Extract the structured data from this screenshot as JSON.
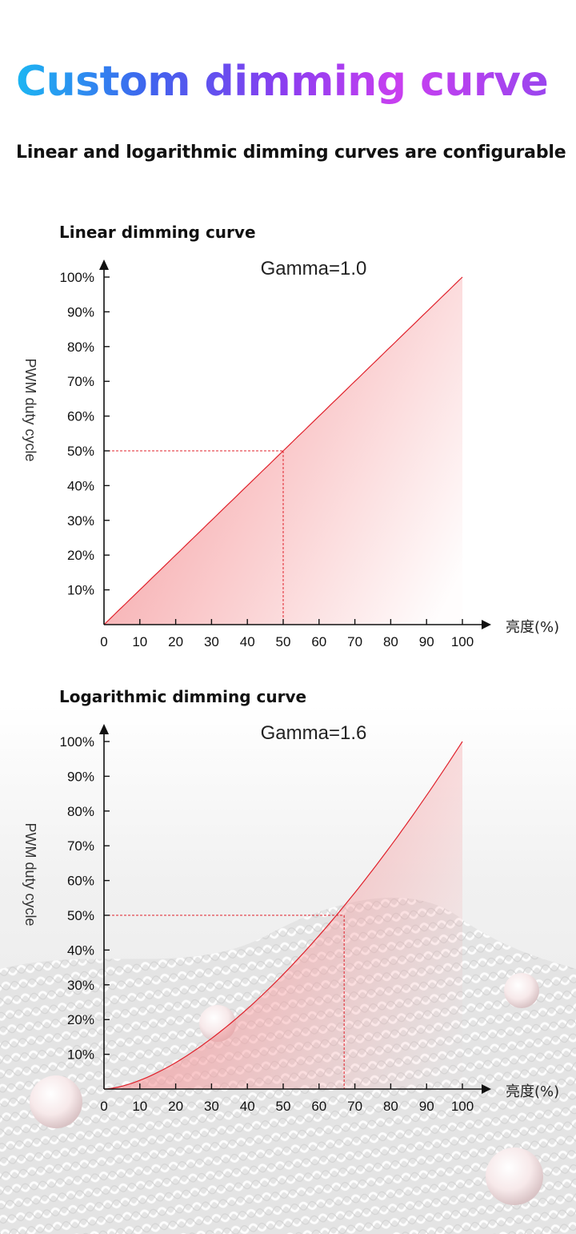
{
  "header": {
    "title": "Custom dimming curve",
    "subtitle": "Linear and logarithmic dimming curves are configurable"
  },
  "chart_data": [
    {
      "type": "area",
      "title": "Linear dimming curve",
      "annotation": "Gamma=1.0",
      "gamma": 1.0,
      "xlabel": "亮度(%)",
      "ylabel": "PWM duty cycle",
      "xlim": [
        0,
        100
      ],
      "ylim": [
        0,
        100
      ],
      "x_ticks": [
        "0",
        "10",
        "20",
        "30",
        "40",
        "50",
        "60",
        "70",
        "80",
        "90",
        "100"
      ],
      "y_ticks": [
        "10%",
        "20%",
        "30%",
        "40%",
        "50%",
        "60%",
        "70%",
        "80%",
        "90%",
        "100%"
      ],
      "x": [
        0,
        10,
        20,
        30,
        40,
        50,
        60,
        70,
        80,
        90,
        100
      ],
      "y": [
        0,
        10,
        20,
        30,
        40,
        50,
        60,
        70,
        80,
        90,
        100
      ],
      "reference_point": {
        "x": 50,
        "y": 50
      },
      "colors": {
        "curve": "#e0212b",
        "fill": "#f59a9d",
        "guide": "#e0212b"
      }
    },
    {
      "type": "area",
      "title": "Logarithmic dimming curve",
      "annotation": "Gamma=1.6",
      "gamma": 1.6,
      "xlabel": "亮度(%)",
      "ylabel": "PWM duty cycle",
      "xlim": [
        0,
        100
      ],
      "ylim": [
        0,
        100
      ],
      "x_ticks": [
        "0",
        "10",
        "20",
        "30",
        "40",
        "50",
        "60",
        "70",
        "80",
        "90",
        "100"
      ],
      "y_ticks": [
        "10%",
        "20%",
        "30%",
        "40%",
        "50%",
        "60%",
        "70%",
        "80%",
        "90%",
        "100%"
      ],
      "x": [
        0,
        10,
        20,
        30,
        40,
        50,
        60,
        70,
        80,
        90,
        100
      ],
      "y": [
        0,
        2.5,
        7.6,
        14.6,
        23.1,
        33,
        44.2,
        56.5,
        70,
        84.5,
        100
      ],
      "reference_point": {
        "x": 67,
        "y": 50
      },
      "colors": {
        "curve": "#e0212b",
        "fill": "#f59a9d",
        "guide": "#e0212b"
      }
    }
  ]
}
